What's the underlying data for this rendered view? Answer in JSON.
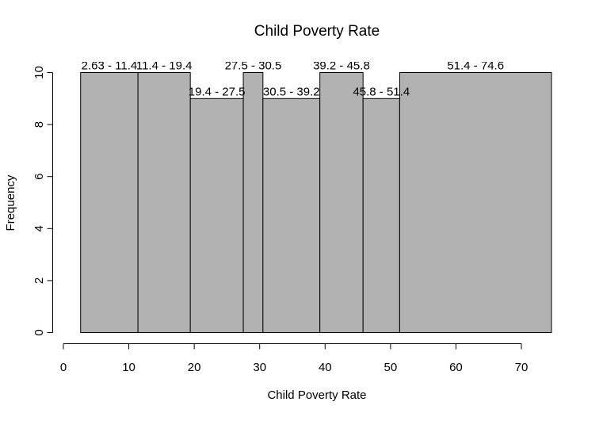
{
  "chart_data": {
    "type": "bar",
    "title": "Child Poverty Rate",
    "xlabel": "Child Poverty Rate",
    "ylabel": "Frequency",
    "xlim": [
      0,
      74.6
    ],
    "ylim": [
      0,
      10
    ],
    "x_ticks": [
      0,
      10,
      20,
      30,
      40,
      50,
      60,
      70
    ],
    "y_ticks": [
      0,
      2,
      4,
      6,
      8,
      10
    ],
    "bar_color": "#b2b2b2",
    "grid": false,
    "bins": [
      {
        "label": "2.63 - 11.4",
        "start": 2.63,
        "end": 11.4,
        "value": 10
      },
      {
        "label": "11.4 - 19.4",
        "start": 11.4,
        "end": 19.4,
        "value": 10
      },
      {
        "label": "19.4 - 27.5",
        "start": 19.4,
        "end": 27.5,
        "value": 9
      },
      {
        "label": "27.5 - 30.5",
        "start": 27.5,
        "end": 30.5,
        "value": 10
      },
      {
        "label": "30.5 - 39.2",
        "start": 30.5,
        "end": 39.2,
        "value": 9
      },
      {
        "label": "39.2 - 45.8",
        "start": 39.2,
        "end": 45.8,
        "value": 10
      },
      {
        "label": "45.8 - 51.4",
        "start": 45.8,
        "end": 51.4,
        "value": 9
      },
      {
        "label": "51.4 - 74.6",
        "start": 51.4,
        "end": 74.6,
        "value": 10
      }
    ]
  }
}
